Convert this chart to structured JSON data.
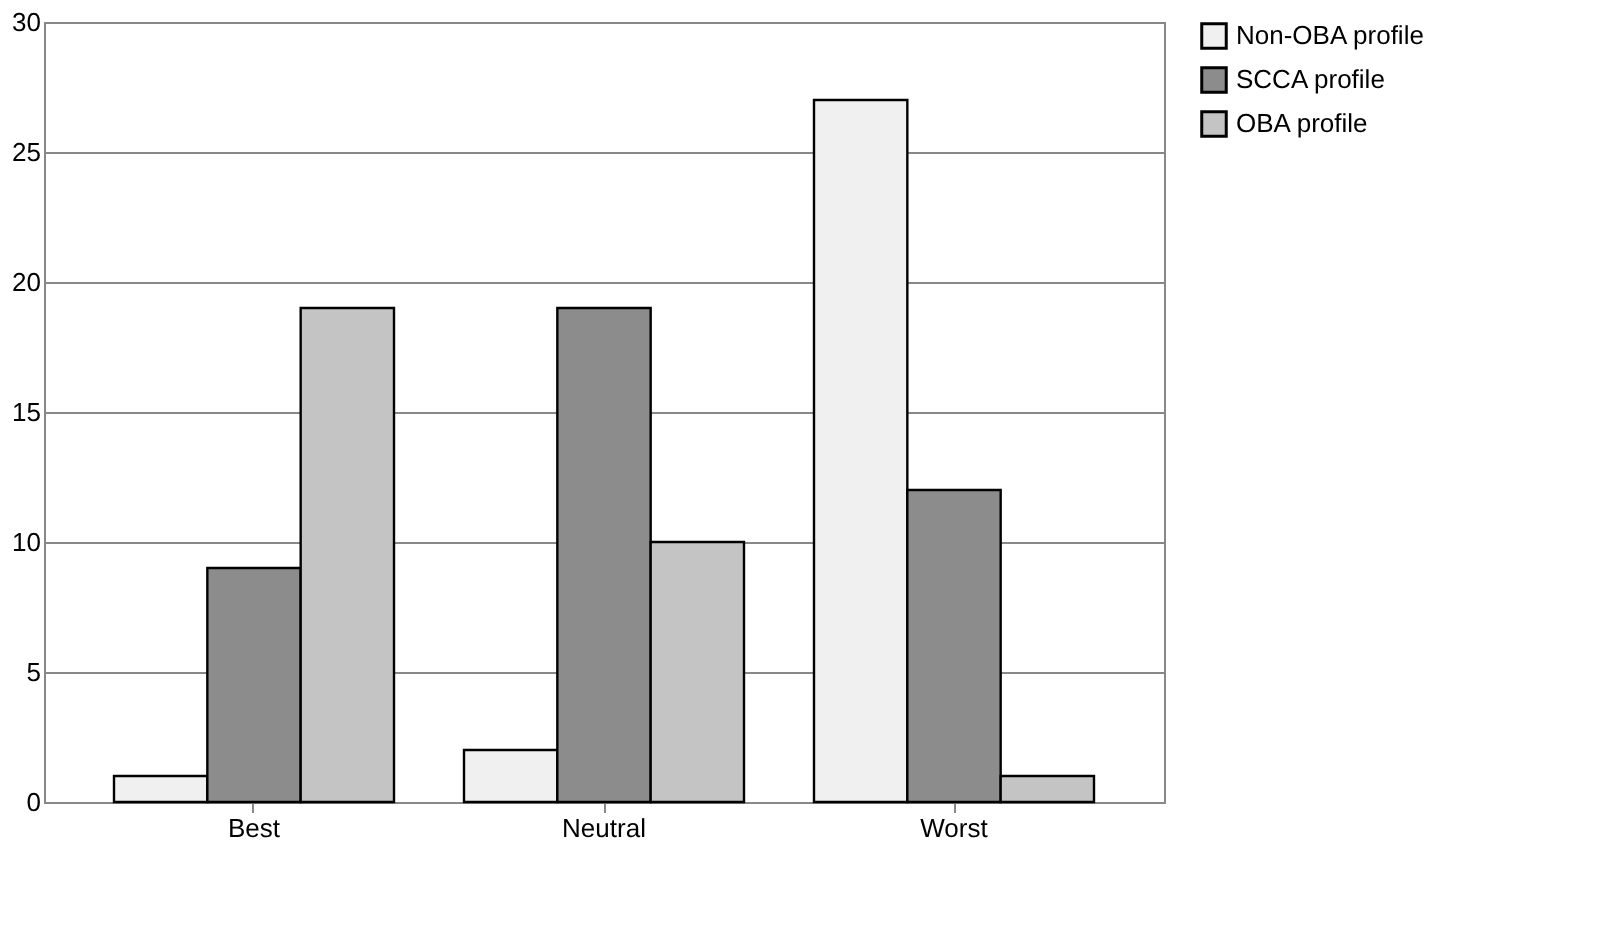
{
  "chart_data": {
    "type": "bar",
    "categories": [
      "Best",
      "Neutral",
      "Worst"
    ],
    "series": [
      {
        "name": "Non-OBA profile",
        "color": "#f0f0f0",
        "values": [
          1,
          2,
          27
        ]
      },
      {
        "name": "SCCA profile",
        "color": "#8c8c8c",
        "values": [
          9,
          19,
          12
        ]
      },
      {
        "name": "OBA profile",
        "color": "#c4c4c4",
        "values": [
          19,
          10,
          1
        ]
      }
    ],
    "ylim": [
      0,
      30
    ],
    "yticks": [
      0,
      5,
      10,
      15,
      20,
      25,
      30
    ],
    "grid": "y",
    "legend": "right"
  }
}
